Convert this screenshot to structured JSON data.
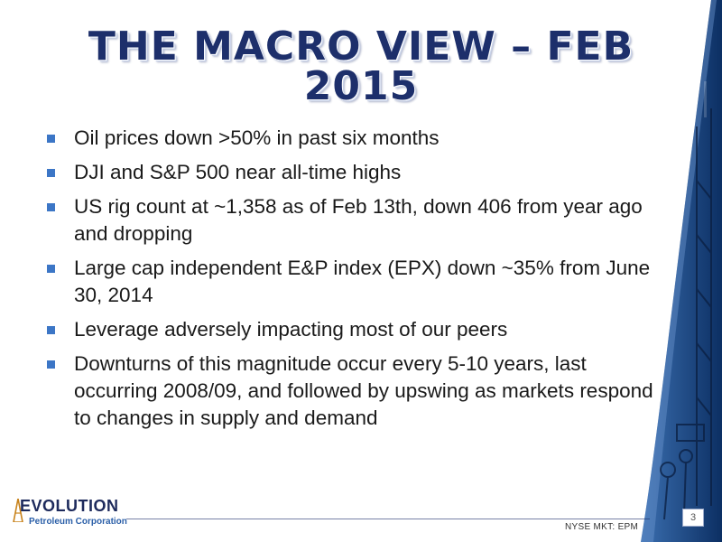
{
  "slide": {
    "title": "THE MACRO VIEW – FEB 2015",
    "bullets": [
      "Oil prices down >50% in past six months",
      "DJI and S&P 500 near all-time highs",
      "US rig count at ~1,358 as of Feb 13th, down 406 from year ago and dropping",
      "Large cap independent E&P index (EPX) down ~35% from June 30, 2014",
      "Leverage adversely impacting most of our peers",
      "Downturns of this magnitude occur every 5-10 years, last occurring 2008/09, and followed by upswing as markets respond to changes in supply and demand"
    ],
    "bullet_color": "#3c76c6",
    "title_color": "#1d2f6b"
  },
  "logo": {
    "name": "EVOLUTION",
    "subtitle": "Petroleum Corporation"
  },
  "footer": {
    "ticker": "NYSE MKT: EPM",
    "page_number": "3"
  },
  "decor": {
    "side_panel_color": "#0f3d78",
    "side_image": "oil-rig-workers-photo"
  }
}
